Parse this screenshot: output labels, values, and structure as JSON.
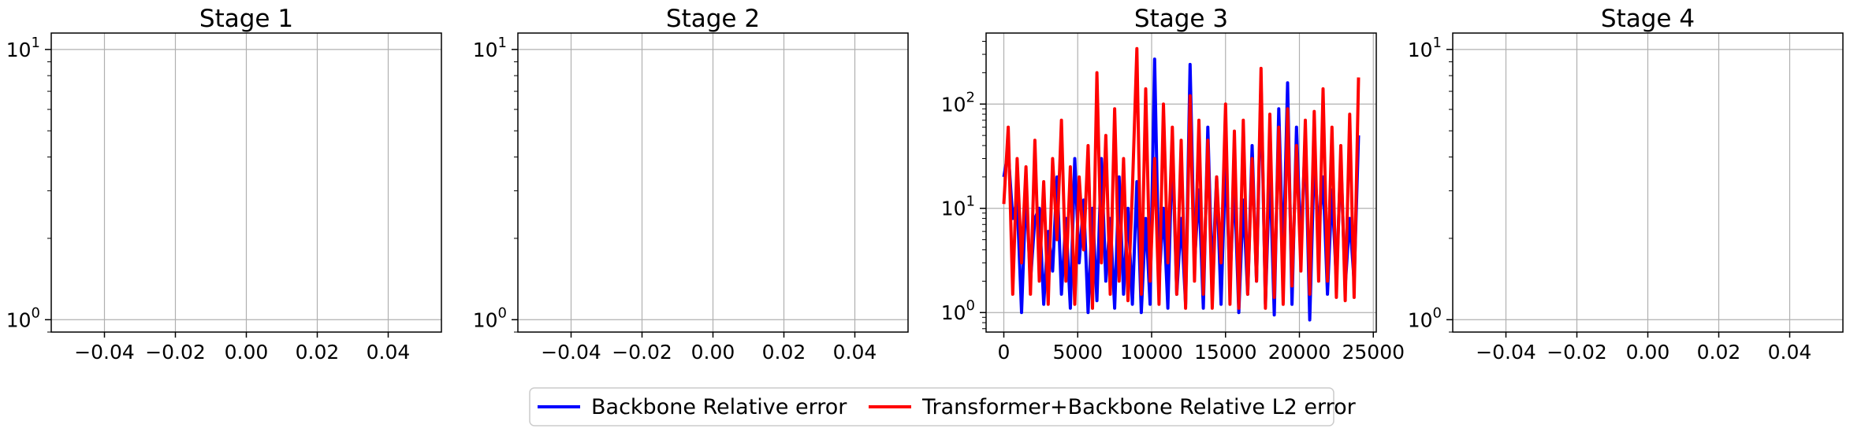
{
  "chart_data": [
    {
      "type": "line",
      "title": "Stage 1",
      "xlabel": "",
      "ylabel": "",
      "yscale": "log",
      "xlim": [
        -0.055,
        0.055
      ],
      "ylim": [
        0.9,
        11.5
      ],
      "xticks": [
        -0.04,
        -0.02,
        0.0,
        0.02,
        0.04
      ],
      "xtick_labels": [
        "−0.04",
        "−0.02",
        "0.00",
        "0.02",
        "0.04"
      ],
      "yticks": [
        1,
        10
      ],
      "ytick_labels": [
        {
          "base": "10",
          "exp": "0"
        },
        {
          "base": "10",
          "exp": "1"
        }
      ],
      "grid": true,
      "series": []
    },
    {
      "type": "line",
      "title": "Stage 2",
      "xlabel": "",
      "ylabel": "",
      "yscale": "log",
      "xlim": [
        -0.055,
        0.055
      ],
      "ylim": [
        0.9,
        11.5
      ],
      "xticks": [
        -0.04,
        -0.02,
        0.0,
        0.02,
        0.04
      ],
      "xtick_labels": [
        "−0.04",
        "−0.02",
        "0.00",
        "0.02",
        "0.04"
      ],
      "yticks": [
        1,
        10
      ],
      "ytick_labels": [
        {
          "base": "10",
          "exp": "0"
        },
        {
          "base": "10",
          "exp": "1"
        }
      ],
      "grid": true,
      "series": []
    },
    {
      "type": "line",
      "title": "Stage 3",
      "xlabel": "",
      "ylabel": "",
      "yscale": "log",
      "xlim": [
        -1200,
        25200
      ],
      "ylim": [
        0.65,
        480
      ],
      "xticks": [
        0,
        5000,
        10000,
        15000,
        20000,
        25000
      ],
      "xtick_labels": [
        "0",
        "5000",
        "10000",
        "15000",
        "20000",
        "25000"
      ],
      "yticks": [
        1,
        10,
        100
      ],
      "ytick_labels": [
        {
          "base": "10",
          "exp": "0"
        },
        {
          "base": "10",
          "exp": "1"
        },
        {
          "base": "10",
          "exp": "2"
        }
      ],
      "grid": true,
      "series": [
        {
          "name": "Backbone Relative error",
          "color": "#0000ff",
          "x": [
            0,
            300,
            600,
            900,
            1200,
            1500,
            1800,
            2100,
            2400,
            2700,
            3000,
            3300,
            3600,
            3900,
            4200,
            4500,
            4800,
            5100,
            5400,
            5700,
            6000,
            6300,
            6600,
            6900,
            7200,
            7500,
            7800,
            8100,
            8400,
            8700,
            9000,
            9300,
            9600,
            9900,
            10200,
            10500,
            10800,
            11100,
            11400,
            11700,
            12000,
            12300,
            12600,
            12900,
            13200,
            13500,
            13800,
            14100,
            14400,
            14700,
            15000,
            15300,
            15600,
            15900,
            16200,
            16500,
            16800,
            17100,
            17400,
            17700,
            18000,
            18300,
            18600,
            18900,
            19200,
            19500,
            19800,
            20100,
            20400,
            20700,
            21000,
            21300,
            21600,
            21900,
            22200,
            22500,
            22800,
            23100,
            23400,
            23700,
            24000
          ],
          "y": [
            20,
            35,
            8,
            12,
            1.0,
            15,
            2,
            8,
            10,
            1.2,
            6,
            2.5,
            20,
            1.5,
            8,
            1.1,
            30,
            3,
            12,
            1.0,
            10,
            1.3,
            30,
            2,
            8,
            1.1,
            20,
            1.5,
            10,
            1.2,
            18,
            1.0,
            8,
            1.2,
            270,
            2,
            10,
            1.1,
            40,
            1.5,
            8,
            1.2,
            240,
            3,
            15,
            1.1,
            60,
            2,
            20,
            1.2,
            30,
            2,
            18,
            1.0,
            12,
            1.5,
            40,
            2,
            160,
            1.2,
            25,
            0.95,
            90,
            3,
            160,
            1.2,
            60,
            4,
            50,
            0.85,
            30,
            6,
            20,
            1.5,
            15,
            2,
            30,
            1.8,
            8,
            2,
            50
          ]
        },
        {
          "name": "Transformer+Backbone Relative L2 error",
          "color": "#ff0000",
          "x": [
            0,
            300,
            600,
            900,
            1200,
            1500,
            1800,
            2100,
            2400,
            2700,
            3000,
            3300,
            3600,
            3900,
            4200,
            4500,
            4800,
            5100,
            5400,
            5700,
            6000,
            6300,
            6600,
            6900,
            7200,
            7500,
            7800,
            8100,
            8400,
            8700,
            9000,
            9300,
            9600,
            9900,
            10200,
            10500,
            10800,
            11100,
            11400,
            11700,
            12000,
            12300,
            12600,
            12900,
            13200,
            13500,
            13800,
            14100,
            14400,
            14700,
            15000,
            15300,
            15600,
            15900,
            16200,
            16500,
            16800,
            17100,
            17400,
            17700,
            18000,
            18300,
            18600,
            18900,
            19200,
            19500,
            19800,
            20100,
            20400,
            20700,
            21000,
            21300,
            21600,
            21900,
            22200,
            22500,
            22800,
            23100,
            23400,
            23700,
            24000
          ],
          "y": [
            11,
            60,
            1.5,
            30,
            3,
            25,
            1.5,
            45,
            2,
            18,
            1.2,
            30,
            5,
            70,
            2,
            25,
            1.2,
            20,
            4,
            40,
            1.1,
            200,
            3,
            50,
            1.5,
            90,
            2,
            30,
            1.3,
            15,
            340,
            1.5,
            140,
            2,
            30,
            1.2,
            100,
            3,
            60,
            1.5,
            45,
            1.1,
            120,
            2,
            70,
            1.5,
            45,
            1.1,
            20,
            3,
            100,
            1.2,
            55,
            1.1,
            70,
            1.5,
            30,
            2,
            220,
            1.1,
            80,
            1.4,
            60,
            1.2,
            90,
            1.8,
            40,
            2.5,
            70,
            1.5,
            85,
            2,
            140,
            2,
            60,
            1.4,
            40,
            1.3,
            80,
            1.4,
            180
          ]
        }
      ]
    },
    {
      "type": "line",
      "title": "Stage 4",
      "xlabel": "",
      "ylabel": "",
      "yscale": "log",
      "xlim": [
        -0.055,
        0.055
      ],
      "ylim": [
        0.9,
        11.5
      ],
      "xticks": [
        -0.04,
        -0.02,
        0.0,
        0.02,
        0.04
      ],
      "xtick_labels": [
        "−0.04",
        "−0.02",
        "0.00",
        "0.02",
        "0.04"
      ],
      "yticks": [
        1,
        10
      ],
      "ytick_labels": [
        {
          "base": "10",
          "exp": "0"
        },
        {
          "base": "10",
          "exp": "1"
        }
      ],
      "grid": true,
      "series": []
    }
  ],
  "legend": {
    "placement": "bottom-center",
    "items": [
      {
        "label": "Backbone Relative error",
        "color": "#0000ff"
      },
      {
        "label": "Transformer+Backbone Relative L2 error",
        "color": "#ff0000"
      }
    ]
  },
  "colors": {
    "grid": "#b0b0b0",
    "axes": "#000000",
    "background": "#ffffff"
  }
}
